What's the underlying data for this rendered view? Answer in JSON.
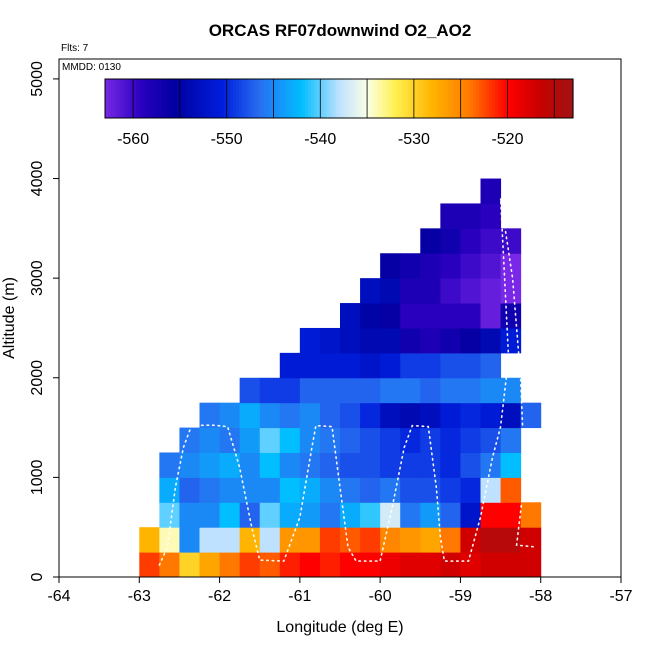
{
  "chart_data": {
    "type": "heatmap",
    "title": "ORCAS RF07downwind O2_AO2",
    "xlabel": "Longitude (deg E)",
    "ylabel": "Altitude (m)",
    "flights_label": "Flts: 7",
    "date_label": "MMDD: 0130",
    "xlim": [
      -64,
      -57
    ],
    "ylim": [
      0,
      5200
    ],
    "x_ticks": [
      -64,
      -63,
      -62,
      -61,
      -60,
      -59,
      -58,
      -57
    ],
    "y_ticks": [
      0,
      1000,
      2000,
      3000,
      4000,
      5000
    ],
    "x_bin_width": 0.25,
    "y_bin_height": 250,
    "colorbar": {
      "min": -563,
      "max": -513,
      "ticks": [
        -560,
        -550,
        -540,
        -530,
        -520
      ]
    },
    "rows": [
      {
        "y": 0,
        "x0": -63,
        "values": [
          -522,
          -524,
          -530,
          -527,
          -524,
          -522,
          -523,
          -521,
          -520,
          -521,
          -520,
          -520,
          -519,
          -518,
          -518,
          -517,
          -518,
          -517,
          -517,
          -517
        ]
      },
      {
        "y": 250,
        "x0": -63,
        "values": [
          -528,
          -534,
          -545,
          -538,
          -538,
          -528,
          -538,
          -526,
          -526,
          -522,
          -523,
          -522,
          -525,
          -526,
          -527,
          -524,
          -517,
          -515,
          -515,
          -517
        ]
      },
      {
        "y": 500,
        "x0": -62.75,
        "values": [
          -540,
          -545,
          -545,
          -542,
          -547,
          -540,
          -543,
          -544,
          -546,
          -543,
          -541,
          -537,
          -546,
          -544,
          -547,
          -552,
          -520,
          -520,
          -524
        ]
      },
      {
        "y": 750,
        "x0": -62.75,
        "values": [
          -543,
          -547,
          -546,
          -545,
          -545,
          -545,
          -542,
          -543,
          -545,
          -546,
          -547,
          -546,
          -548,
          -548,
          -549,
          -550,
          -538,
          -523
        ]
      },
      {
        "y": 1000,
        "x0": -62.75,
        "values": [
          -546,
          -545,
          -544,
          -543,
          -545,
          -542,
          -545,
          -546,
          -547,
          -548,
          -548,
          -549,
          -549,
          -549,
          -550,
          -548,
          -546,
          -542
        ]
      },
      {
        "y": 1250,
        "x0": -62.5,
        "values": [
          -546,
          -545,
          -546,
          -544,
          -540,
          -542,
          -545,
          -546,
          -547,
          -548,
          -549,
          -550,
          -549,
          -550,
          -549,
          -548,
          -546
        ]
      },
      {
        "y": 1500,
        "x0": -62.25,
        "values": [
          -546,
          -545,
          -543,
          -545,
          -546,
          -545,
          -547,
          -548,
          -550,
          -553,
          -554,
          -553,
          -551,
          -550,
          -551,
          -553,
          -547
        ]
      },
      {
        "y": 1750,
        "x0": -61.75,
        "values": [
          -548,
          -549,
          -549,
          -547,
          -547,
          -547,
          -547,
          -546,
          -546,
          -547,
          -546,
          -546,
          -545,
          -545
        ]
      },
      {
        "y": 2000,
        "x0": -61.25,
        "values": [
          -551,
          -551,
          -551,
          -551,
          -552,
          -551,
          -549,
          -549,
          -548,
          -548,
          -547
        ]
      },
      {
        "y": 2250,
        "x0": -61,
        "values": [
          -551,
          -552,
          -553,
          -554,
          -554,
          -557,
          -558,
          -557,
          -556,
          -554,
          -551
        ]
      },
      {
        "y": 2500,
        "x0": -60.5,
        "values": [
          -553,
          -555,
          -556,
          -559,
          -559,
          -559,
          -559,
          -562,
          -557
        ]
      },
      {
        "y": 2750,
        "x0": -60.25,
        "values": [
          -553,
          -554,
          -558,
          -558,
          -560,
          -561,
          -562,
          -565
        ]
      },
      {
        "y": 3000,
        "x0": -60,
        "values": [
          -556,
          -557,
          -558,
          -559,
          -560,
          -561,
          -566
        ]
      },
      {
        "y": 3250,
        "x0": -59.5,
        "values": [
          -556,
          -557,
          -559,
          -560,
          -560
        ]
      },
      {
        "y": 3500,
        "x0": -59.25,
        "values": [
          -558,
          -558,
          -559
        ]
      },
      {
        "y": 3750,
        "x0": -58.75,
        "values": [
          -558
        ]
      }
    ],
    "flight_track": [
      [
        -62.75,
        120
      ],
      [
        -62.65,
        300
      ],
      [
        -62.55,
        900
      ],
      [
        -62.45,
        1300
      ],
      [
        -62.35,
        1520
      ],
      [
        -62.1,
        1525
      ],
      [
        -61.9,
        1510
      ],
      [
        -61.75,
        1100
      ],
      [
        -61.6,
        500
      ],
      [
        -61.5,
        170
      ],
      [
        -61.2,
        160
      ],
      [
        -61.0,
        600
      ],
      [
        -60.85,
        1300
      ],
      [
        -60.8,
        1520
      ],
      [
        -60.6,
        1510
      ],
      [
        -60.5,
        900
      ],
      [
        -60.4,
        300
      ],
      [
        -60.3,
        160
      ],
      [
        -60.0,
        160
      ],
      [
        -59.85,
        700
      ],
      [
        -59.7,
        1300
      ],
      [
        -59.6,
        1520
      ],
      [
        -59.4,
        1510
      ],
      [
        -59.3,
        900
      ],
      [
        -59.25,
        400
      ],
      [
        -59.2,
        160
      ],
      [
        -58.9,
        160
      ],
      [
        -58.75,
        600
      ],
      [
        -58.6,
        1200
      ],
      [
        -58.5,
        1510
      ],
      [
        -58.4,
        2200
      ],
      [
        -58.45,
        3000
      ],
      [
        -58.5,
        3800
      ],
      [
        -58.35,
        3000
      ],
      [
        -58.25,
        2000
      ],
      [
        -58.2,
        1000
      ],
      [
        -58.3,
        320
      ],
      [
        -58.05,
        300
      ]
    ]
  }
}
